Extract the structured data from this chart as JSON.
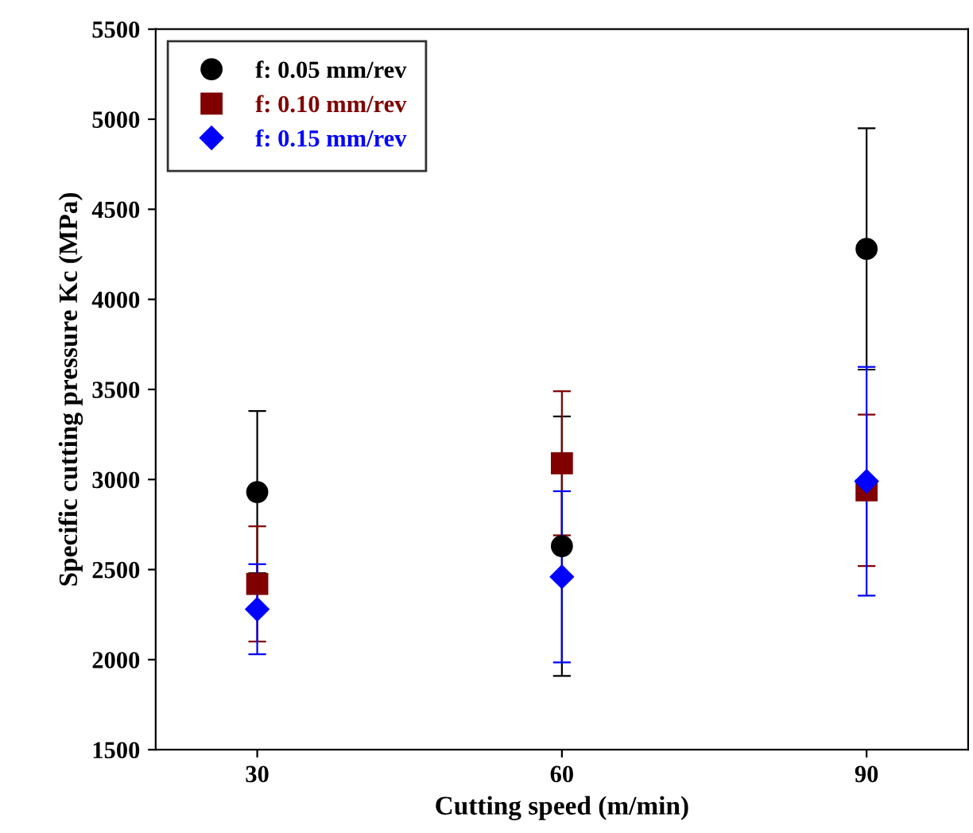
{
  "chart_data": {
    "type": "scatter",
    "xlabel": "Cutting speed (m/min)",
    "ylabel": "Specific cutting pressure Kc (MPa)",
    "x": [
      30,
      60,
      90
    ],
    "series": [
      {
        "name": "f: 0.05 mm/rev",
        "color": "#000000",
        "marker": "circle",
        "values": [
          2930,
          2630,
          4280
        ],
        "errors": [
          450,
          720,
          670
        ]
      },
      {
        "name": "f: 0.10 mm/rev",
        "color": "#800000",
        "marker": "square",
        "values": [
          2420,
          3090,
          2940
        ],
        "errors": [
          320,
          400,
          420
        ]
      },
      {
        "name": "f: 0.15 mm/rev",
        "color": "#0000ff",
        "marker": "diamond",
        "values": [
          2280,
          2460,
          2990
        ],
        "errors": [
          250,
          475,
          635
        ]
      }
    ],
    "xlim": [
      20,
      100
    ],
    "xticks": [
      30,
      60,
      90
    ],
    "ylim": [
      1500,
      5500
    ],
    "yticks": [
      1500,
      2000,
      2500,
      3000,
      3500,
      4000,
      4500,
      5000,
      5500
    ],
    "grid": false,
    "legend": "top left"
  }
}
